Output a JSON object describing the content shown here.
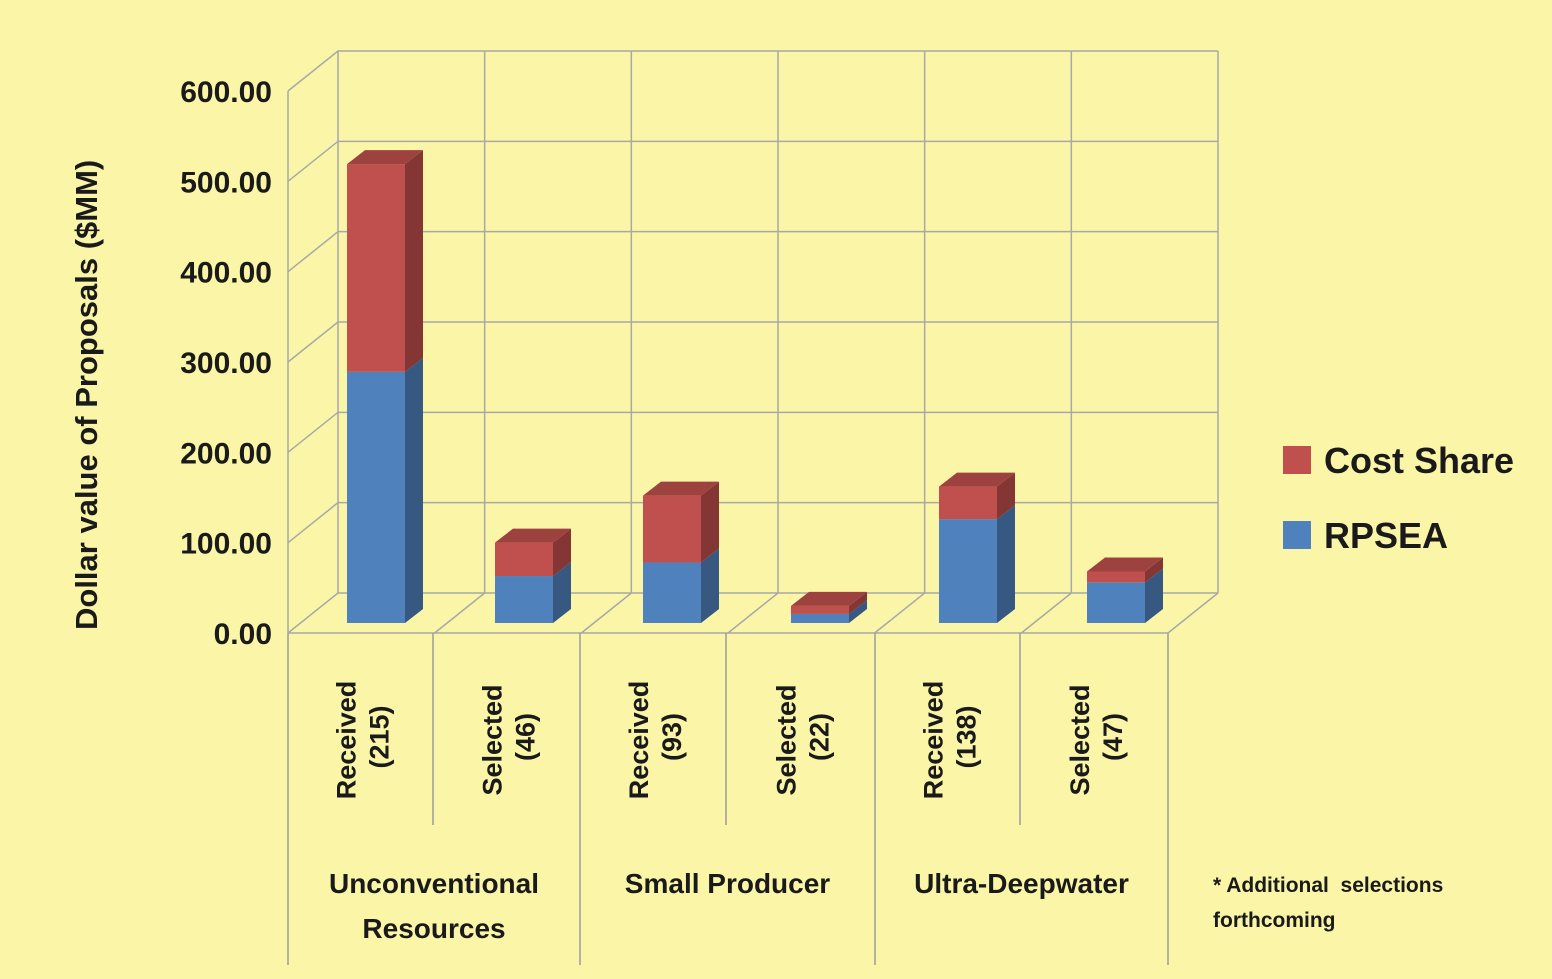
{
  "chart_data": {
    "type": "bar",
    "stacked": true,
    "three_d": true,
    "ylabel": "Dollar value of Proposals ($MM)",
    "ylim": [
      0,
      600
    ],
    "yticks": [
      "0.00",
      "100.00",
      "200.00",
      "300.00",
      "400.00",
      "500.00",
      "600.00"
    ],
    "grid": true,
    "legend_position": "right",
    "groups": [
      {
        "label_lines": [
          "Unconventional",
          "Resources"
        ]
      },
      {
        "label_lines": [
          "Small Producer"
        ]
      },
      {
        "label_lines": [
          "Ultra-Deepwater"
        ]
      }
    ],
    "categories": [
      {
        "line1": "Received",
        "line2": "(215)"
      },
      {
        "line1": "Selected",
        "line2": "(46)"
      },
      {
        "line1": "Received",
        "line2": "(93)"
      },
      {
        "line1": "Selected",
        "line2": "(22)"
      },
      {
        "line1": "Received",
        "line2": "(138)"
      },
      {
        "line1": "Selected",
        "line2": "(47)"
      }
    ],
    "series": [
      {
        "name": "RPSEA",
        "color": "#4f81bd",
        "values": [
          278,
          52,
          67,
          10,
          115,
          45
        ]
      },
      {
        "name": "Cost Share",
        "color": "#c0504d",
        "values": [
          230,
          37,
          74,
          9,
          36,
          12
        ]
      }
    ],
    "annotation_lines": [
      "* Additional  selections",
      "forthcoming"
    ]
  }
}
